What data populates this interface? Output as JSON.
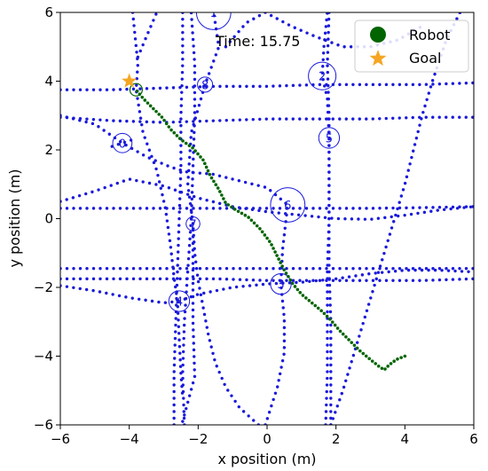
{
  "chart_data": {
    "type": "scatter",
    "xlabel": "x position (m)",
    "ylabel": "y position (m)",
    "xlim": [
      -6,
      6
    ],
    "ylim": [
      -6,
      6
    ],
    "xticks": [
      "−6",
      "−4",
      "−2",
      "0",
      "2",
      "4",
      "6"
    ],
    "yticks": [
      "−6",
      "−4",
      "−2",
      "0",
      "2",
      "4",
      "6"
    ],
    "grid": false,
    "annotation": "Time: 15.75",
    "legend": {
      "placement": "top-right",
      "entries": [
        {
          "label": "Robot",
          "marker": "circle",
          "color": "#006400"
        },
        {
          "label": "Goal",
          "marker": "star",
          "color": "#f5a623"
        }
      ]
    },
    "colors": {
      "trail": "#1a1adb",
      "robot_path": "#006400",
      "goal": "#f5a623"
    },
    "goal": {
      "x": -4.0,
      "y": 4.0
    },
    "robot": {
      "x": -3.8,
      "y": 3.75,
      "radius": 0.18
    },
    "robot_path": [
      [
        4.0,
        -4.0
      ],
      [
        3.75,
        -4.1
      ],
      [
        3.55,
        -4.25
      ],
      [
        3.4,
        -4.4
      ],
      [
        3.25,
        -4.3
      ],
      [
        3.0,
        -4.1
      ],
      [
        2.7,
        -3.85
      ],
      [
        2.4,
        -3.55
      ],
      [
        2.1,
        -3.25
      ],
      [
        1.85,
        -2.95
      ],
      [
        1.6,
        -2.7
      ],
      [
        1.3,
        -2.45
      ],
      [
        1.0,
        -2.2
      ],
      [
        0.75,
        -1.9
      ],
      [
        0.5,
        -1.5
      ],
      [
        0.3,
        -1.1
      ],
      [
        0.1,
        -0.7
      ],
      [
        -0.2,
        -0.3
      ],
      [
        -0.55,
        0.05
      ],
      [
        -0.9,
        0.25
      ],
      [
        -1.2,
        0.45
      ],
      [
        -1.4,
        0.85
      ],
      [
        -1.65,
        1.25
      ],
      [
        -1.85,
        1.7
      ],
      [
        -2.15,
        2.05
      ],
      [
        -2.5,
        2.3
      ],
      [
        -2.8,
        2.6
      ],
      [
        -3.05,
        2.95
      ],
      [
        -3.35,
        3.25
      ],
      [
        -3.6,
        3.5
      ],
      [
        -3.8,
        3.75
      ]
    ],
    "obstacles": [
      {
        "label": "0",
        "x": -4.2,
        "y": 2.2,
        "r": 0.28
      },
      {
        "label": "1",
        "x": -1.55,
        "y": 6.0,
        "r": 0.5
      },
      {
        "label": "2",
        "x": 1.6,
        "y": 4.15,
        "r": 0.4
      },
      {
        "label": "3",
        "x": 0.4,
        "y": -1.9,
        "r": 0.3
      },
      {
        "label": "4",
        "x": -2.55,
        "y": -2.4,
        "r": 0.3
      },
      {
        "label": "5",
        "x": 1.8,
        "y": 2.35,
        "r": 0.3
      },
      {
        "label": "6",
        "x": 0.6,
        "y": 0.4,
        "r": 0.5
      },
      {
        "label": "7",
        "x": -2.15,
        "y": -0.15,
        "r": 0.2
      },
      {
        "label": "8",
        "x": -1.8,
        "y": 3.9,
        "r": 0.22
      }
    ],
    "trails": [
      {
        "name": "0",
        "points": [
          [
            -6.0,
            3.0
          ],
          [
            -5.0,
            2.75
          ],
          [
            -4.2,
            2.2
          ],
          [
            -3.5,
            1.8
          ],
          [
            -2.8,
            1.5
          ],
          [
            -2.3,
            1.35
          ],
          [
            -1.6,
            1.3
          ],
          [
            -0.8,
            1.1
          ],
          [
            0.0,
            0.9
          ],
          [
            0.6,
            0.4
          ]
        ]
      },
      {
        "name": "1",
        "points": [
          [
            -6.0,
            3.75
          ],
          [
            -4.5,
            3.75
          ],
          [
            -3.0,
            3.8
          ],
          [
            -1.5,
            3.85
          ],
          [
            0.0,
            3.85
          ],
          [
            1.5,
            3.9
          ],
          [
            3.0,
            3.9
          ],
          [
            4.5,
            3.9
          ],
          [
            6.0,
            3.95
          ]
        ]
      },
      {
        "name": "2",
        "points": [
          [
            -6.0,
            2.95
          ],
          [
            -4.5,
            2.85
          ],
          [
            -3.0,
            2.8
          ],
          [
            -1.5,
            2.85
          ],
          [
            0.0,
            2.9
          ],
          [
            1.5,
            2.9
          ],
          [
            3.0,
            2.9
          ],
          [
            4.5,
            2.95
          ],
          [
            6.0,
            2.95
          ]
        ]
      },
      {
        "name": "3",
        "points": [
          [
            -6.0,
            0.3
          ],
          [
            -4.5,
            0.3
          ],
          [
            -3.0,
            0.3
          ],
          [
            -1.5,
            0.3
          ],
          [
            0.0,
            0.3
          ],
          [
            1.5,
            0.3
          ],
          [
            3.0,
            0.3
          ],
          [
            4.5,
            0.32
          ],
          [
            6.0,
            0.35
          ]
        ]
      },
      {
        "name": "4",
        "points": [
          [
            -6.0,
            0.5
          ],
          [
            -5.0,
            0.8
          ],
          [
            -4.0,
            1.15
          ],
          [
            -3.0,
            0.95
          ],
          [
            -2.0,
            0.6
          ],
          [
            -1.0,
            0.35
          ],
          [
            0.0,
            0.2
          ],
          [
            1.0,
            0.1
          ],
          [
            2.0,
            0.0
          ],
          [
            3.0,
            -0.02
          ],
          [
            4.0,
            0.1
          ],
          [
            5.0,
            0.25
          ],
          [
            6.0,
            0.35
          ]
        ]
      },
      {
        "name": "5",
        "points": [
          [
            -6.0,
            -1.45
          ],
          [
            -4.5,
            -1.45
          ],
          [
            -3.0,
            -1.45
          ],
          [
            -1.5,
            -1.45
          ],
          [
            0.0,
            -1.45
          ],
          [
            1.5,
            -1.45
          ],
          [
            3.0,
            -1.45
          ],
          [
            4.5,
            -1.45
          ],
          [
            6.0,
            -1.45
          ]
        ]
      },
      {
        "name": "6",
        "points": [
          [
            -6.0,
            -1.75
          ],
          [
            -4.5,
            -1.75
          ],
          [
            -3.0,
            -1.75
          ],
          [
            -1.5,
            -1.75
          ],
          [
            0.0,
            -1.8
          ],
          [
            1.5,
            -1.8
          ],
          [
            3.0,
            -1.8
          ],
          [
            4.5,
            -1.8
          ],
          [
            6.0,
            -1.75
          ]
        ]
      },
      {
        "name": "7",
        "points": [
          [
            -6.0,
            -1.95
          ],
          [
            -5.0,
            -2.1
          ],
          [
            -4.0,
            -2.3
          ],
          [
            -3.0,
            -2.45
          ],
          [
            -2.55,
            -2.4
          ],
          [
            -2.0,
            -2.2
          ],
          [
            -1.0,
            -2.0
          ],
          [
            0.0,
            -1.9
          ],
          [
            1.0,
            -1.85
          ],
          [
            2.0,
            -1.75
          ],
          [
            3.0,
            -1.6
          ],
          [
            4.0,
            -1.5
          ],
          [
            5.0,
            -1.5
          ],
          [
            6.0,
            -1.55
          ]
        ]
      },
      {
        "name": "8",
        "points": [
          [
            -2.7,
            -6.0
          ],
          [
            -2.7,
            -4.5
          ],
          [
            -2.65,
            -3.0
          ],
          [
            -2.6,
            -1.5
          ],
          [
            -2.55,
            0.0
          ],
          [
            -2.5,
            1.5
          ],
          [
            -2.5,
            3.0
          ],
          [
            -2.45,
            4.5
          ],
          [
            -2.45,
            6.0
          ]
        ]
      },
      {
        "name": "9",
        "points": [
          [
            -2.4,
            -6.0
          ],
          [
            -2.45,
            -4.5
          ],
          [
            -2.4,
            -3.0
          ],
          [
            -2.3,
            -1.5
          ],
          [
            -2.2,
            0.0
          ],
          [
            -2.15,
            1.5
          ],
          [
            -2.1,
            3.0
          ],
          [
            -2.1,
            4.5
          ],
          [
            -2.2,
            6.0
          ]
        ]
      },
      {
        "name": "10",
        "points": [
          [
            -2.45,
            -5.9
          ],
          [
            -2.1,
            -4.6
          ],
          [
            -2.15,
            -3.0
          ],
          [
            -2.15,
            -1.5
          ],
          [
            -2.15,
            -0.15
          ],
          [
            -2.3,
            1.0
          ],
          [
            -2.2,
            2.5
          ],
          [
            -1.8,
            3.9
          ],
          [
            -1.4,
            5.0
          ],
          [
            -1.55,
            6.0
          ]
        ]
      },
      {
        "name": "11",
        "points": [
          [
            -3.9,
            6.0
          ],
          [
            -3.75,
            4.5
          ],
          [
            -3.8,
            3.75
          ],
          [
            -3.6,
            2.5
          ],
          [
            -3.2,
            1.4
          ],
          [
            -2.95,
            0.3
          ],
          [
            -2.8,
            -0.8
          ],
          [
            -2.7,
            -1.7
          ],
          [
            -2.6,
            -2.4
          ],
          [
            -2.55,
            -3.5
          ],
          [
            -2.5,
            -4.5
          ],
          [
            -2.45,
            -5.2
          ]
        ]
      },
      {
        "name": "12",
        "points": [
          [
            1.7,
            -6.0
          ],
          [
            1.75,
            -4.5
          ],
          [
            1.75,
            -3.0
          ],
          [
            1.75,
            -1.5
          ],
          [
            1.8,
            0.0
          ],
          [
            1.8,
            1.5
          ],
          [
            1.8,
            3.0
          ],
          [
            1.75,
            4.5
          ],
          [
            1.8,
            6.0
          ]
        ]
      },
      {
        "name": "13",
        "points": [
          [
            1.85,
            -6.0
          ],
          [
            1.85,
            -4.5
          ],
          [
            1.85,
            -3.0
          ],
          [
            1.8,
            -1.5
          ],
          [
            1.8,
            0.0
          ],
          [
            1.8,
            1.5
          ],
          [
            1.8,
            2.35
          ],
          [
            1.75,
            3.5
          ],
          [
            1.6,
            4.15
          ],
          [
            1.65,
            5.0
          ],
          [
            1.75,
            6.0
          ]
        ]
      },
      {
        "name": "14",
        "points": [
          [
            1.85,
            -6.0
          ],
          [
            2.2,
            -5.0
          ],
          [
            2.5,
            -4.0
          ],
          [
            2.8,
            -3.0
          ],
          [
            3.1,
            -2.0
          ],
          [
            3.4,
            -1.0
          ],
          [
            3.7,
            0.0
          ],
          [
            4.0,
            1.0
          ],
          [
            4.25,
            2.0
          ],
          [
            4.5,
            3.0
          ],
          [
            4.8,
            4.0
          ],
          [
            5.2,
            5.2
          ],
          [
            5.6,
            6.0
          ]
        ]
      },
      {
        "name": "15",
        "points": [
          [
            -0.25,
            -6.0
          ],
          [
            -0.8,
            -5.5
          ],
          [
            -1.2,
            -4.9
          ],
          [
            -1.5,
            -4.2
          ],
          [
            -1.7,
            -3.4
          ],
          [
            -1.85,
            -2.6
          ],
          [
            -2.0,
            -1.8
          ],
          [
            -2.1,
            -1.0
          ],
          [
            -2.15,
            -0.15
          ]
        ]
      },
      {
        "name": "16",
        "points": [
          [
            -0.05,
            -6.0
          ],
          [
            0.3,
            -4.9
          ],
          [
            0.5,
            -3.9
          ],
          [
            0.5,
            -2.9
          ],
          [
            0.4,
            -1.9
          ],
          [
            0.45,
            -0.9
          ],
          [
            0.6,
            0.4
          ]
        ]
      },
      {
        "name": "17",
        "points": [
          [
            -1.2,
            5.0
          ],
          [
            -0.6,
            5.7
          ],
          [
            -0.05,
            6.0
          ],
          [
            0.7,
            5.6
          ],
          [
            1.4,
            5.3
          ],
          [
            2.2,
            5.0
          ],
          [
            3.0,
            5.0
          ],
          [
            3.8,
            5.2
          ],
          [
            4.5,
            5.6
          ]
        ]
      },
      {
        "name": "18",
        "points": [
          [
            -3.75,
            4.7
          ],
          [
            -3.5,
            5.3
          ],
          [
            -3.2,
            6.0
          ]
        ]
      },
      {
        "name": "19",
        "points": [
          [
            -4.5,
            2.1
          ],
          [
            -4.2,
            2.2
          ],
          [
            -3.9,
            2.3
          ]
        ]
      }
    ]
  }
}
